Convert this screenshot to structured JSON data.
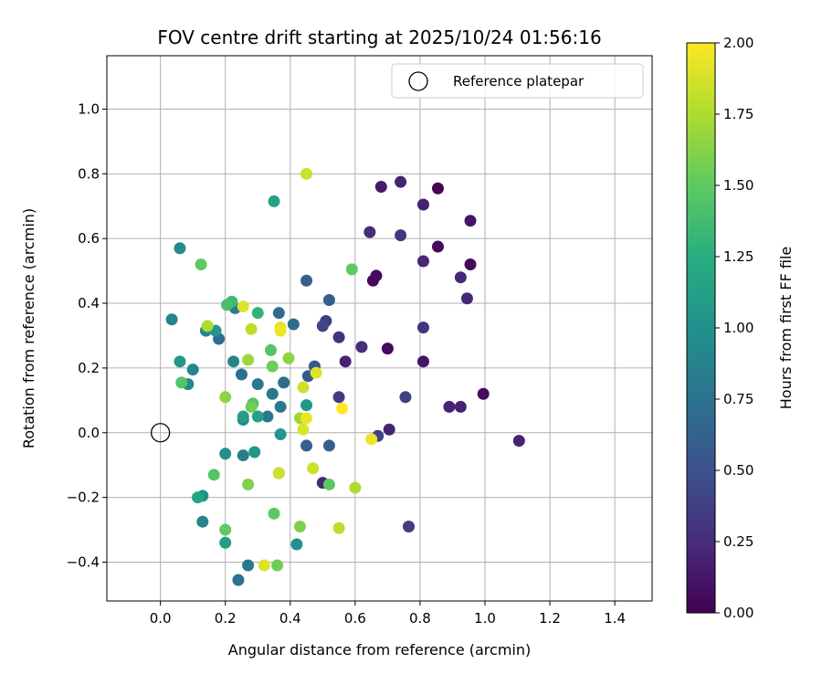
{
  "chart_data": {
    "type": "scatter",
    "title": "FOV centre drift starting at 2025/10/24 01:56:16",
    "xlabel": "Angular distance from reference (arcmin)",
    "ylabel": "Rotation from reference (arcmin)",
    "xlim": [
      -0.165,
      1.515
    ],
    "ylim": [
      -0.52,
      1.165
    ],
    "xticks": [
      0.0,
      0.2,
      0.4,
      0.6,
      0.8,
      1.0,
      1.2,
      1.4
    ],
    "xtick_labels": [
      "0.0",
      "0.2",
      "0.4",
      "0.6",
      "0.8",
      "1.0",
      "1.2",
      "1.4"
    ],
    "yticks": [
      -0.4,
      -0.2,
      0.0,
      0.2,
      0.4,
      0.6,
      0.8,
      1.0
    ],
    "ytick_labels": [
      "−0.4",
      "−0.2",
      "0.0",
      "0.2",
      "0.4",
      "0.6",
      "0.8",
      "1.0"
    ],
    "grid": true,
    "legend": {
      "location": "top-right",
      "entries": [
        "Reference platepar"
      ]
    },
    "reference_point": {
      "x": 0.0,
      "y": 0.0,
      "label": "Reference platepar"
    },
    "colorbar": {
      "label": "Hours from first FF file",
      "colormap": "viridis",
      "range": [
        0.0,
        2.0
      ],
      "ticks": [
        0.0,
        0.25,
        0.5,
        0.75,
        1.0,
        1.25,
        1.5,
        1.75,
        2.0
      ],
      "tick_labels": [
        "0.00",
        "0.25",
        "0.50",
        "0.75",
        "1.00",
        "1.25",
        "1.50",
        "1.75",
        "2.00"
      ]
    },
    "points": [
      {
        "x": 0.855,
        "y": 0.755,
        "c": 0.02
      },
      {
        "x": 0.68,
        "y": 0.76,
        "c": 0.15
      },
      {
        "x": 0.74,
        "y": 0.775,
        "c": 0.2
      },
      {
        "x": 0.81,
        "y": 0.705,
        "c": 0.18
      },
      {
        "x": 0.955,
        "y": 0.655,
        "c": 0.12
      },
      {
        "x": 0.645,
        "y": 0.62,
        "c": 0.25
      },
      {
        "x": 0.74,
        "y": 0.61,
        "c": 0.3
      },
      {
        "x": 0.855,
        "y": 0.575,
        "c": 0.05
      },
      {
        "x": 0.955,
        "y": 0.52,
        "c": 0.05
      },
      {
        "x": 0.81,
        "y": 0.53,
        "c": 0.22
      },
      {
        "x": 0.925,
        "y": 0.48,
        "c": 0.22
      },
      {
        "x": 0.945,
        "y": 0.415,
        "c": 0.22
      },
      {
        "x": 0.665,
        "y": 0.485,
        "c": 0.05
      },
      {
        "x": 0.655,
        "y": 0.47,
        "c": 0.05
      },
      {
        "x": 0.81,
        "y": 0.325,
        "c": 0.3
      },
      {
        "x": 0.81,
        "y": 0.22,
        "c": 0.12
      },
      {
        "x": 0.7,
        "y": 0.26,
        "c": 0.05
      },
      {
        "x": 0.62,
        "y": 0.265,
        "c": 0.25
      },
      {
        "x": 0.57,
        "y": 0.22,
        "c": 0.2
      },
      {
        "x": 0.55,
        "y": 0.295,
        "c": 0.28
      },
      {
        "x": 0.51,
        "y": 0.345,
        "c": 0.35
      },
      {
        "x": 0.5,
        "y": 0.33,
        "c": 0.42
      },
      {
        "x": 0.52,
        "y": 0.41,
        "c": 0.6
      },
      {
        "x": 0.45,
        "y": 0.47,
        "c": 0.62
      },
      {
        "x": 0.55,
        "y": 0.11,
        "c": 0.35
      },
      {
        "x": 0.755,
        "y": 0.11,
        "c": 0.38
      },
      {
        "x": 0.89,
        "y": 0.08,
        "c": 0.2
      },
      {
        "x": 0.925,
        "y": 0.08,
        "c": 0.2
      },
      {
        "x": 0.995,
        "y": 0.12,
        "c": 0.05
      },
      {
        "x": 1.105,
        "y": -0.025,
        "c": 0.2
      },
      {
        "x": 0.705,
        "y": 0.01,
        "c": 0.2
      },
      {
        "x": 0.67,
        "y": -0.01,
        "c": 0.4
      },
      {
        "x": 0.765,
        "y": -0.29,
        "c": 0.35
      },
      {
        "x": 0.5,
        "y": -0.155,
        "c": 0.22
      },
      {
        "x": 0.52,
        "y": -0.04,
        "c": 0.6
      },
      {
        "x": 0.45,
        "y": -0.04,
        "c": 0.6
      },
      {
        "x": 0.365,
        "y": -0.125,
        "c": 0.62
      },
      {
        "x": 0.455,
        "y": 0.175,
        "c": 0.55
      },
      {
        "x": 0.475,
        "y": 0.205,
        "c": 0.55
      },
      {
        "x": 0.365,
        "y": 0.37,
        "c": 0.7
      },
      {
        "x": 0.41,
        "y": 0.335,
        "c": 0.7
      },
      {
        "x": 0.38,
        "y": 0.155,
        "c": 0.7
      },
      {
        "x": 0.37,
        "y": 0.08,
        "c": 0.8
      },
      {
        "x": 0.345,
        "y": 0.12,
        "c": 0.78
      },
      {
        "x": 0.3,
        "y": 0.15,
        "c": 0.8
      },
      {
        "x": 0.25,
        "y": 0.18,
        "c": 0.75
      },
      {
        "x": 0.225,
        "y": 0.22,
        "c": 0.9
      },
      {
        "x": 0.23,
        "y": 0.385,
        "c": 0.8
      },
      {
        "x": 0.18,
        "y": 0.29,
        "c": 0.7
      },
      {
        "x": 0.14,
        "y": 0.315,
        "c": 0.9
      },
      {
        "x": 0.035,
        "y": 0.35,
        "c": 0.9
      },
      {
        "x": 0.06,
        "y": 0.57,
        "c": 0.95
      },
      {
        "x": 0.1,
        "y": 0.195,
        "c": 0.9
      },
      {
        "x": 0.085,
        "y": 0.15,
        "c": 0.95
      },
      {
        "x": 0.06,
        "y": 0.22,
        "c": 1.05
      },
      {
        "x": 0.17,
        "y": 0.315,
        "c": 1.05
      },
      {
        "x": 0.33,
        "y": 0.05,
        "c": 0.8
      },
      {
        "x": 0.255,
        "y": 0.04,
        "c": 0.95
      },
      {
        "x": 0.255,
        "y": 0.05,
        "c": 1.1
      },
      {
        "x": 0.3,
        "y": 0.05,
        "c": 1.15
      },
      {
        "x": 0.37,
        "y": -0.005,
        "c": 1.05
      },
      {
        "x": 0.45,
        "y": 0.085,
        "c": 1.05
      },
      {
        "x": 0.255,
        "y": -0.07,
        "c": 0.85
      },
      {
        "x": 0.29,
        "y": -0.06,
        "c": 1.05
      },
      {
        "x": 0.2,
        "y": -0.065,
        "c": 1.0
      },
      {
        "x": 0.13,
        "y": -0.275,
        "c": 0.9
      },
      {
        "x": 0.13,
        "y": -0.195,
        "c": 1.0
      },
      {
        "x": 0.115,
        "y": -0.2,
        "c": 1.15
      },
      {
        "x": 0.2,
        "y": -0.34,
        "c": 1.1
      },
      {
        "x": 0.27,
        "y": -0.41,
        "c": 0.8
      },
      {
        "x": 0.24,
        "y": -0.455,
        "c": 0.75
      },
      {
        "x": 0.42,
        "y": -0.345,
        "c": 1.0
      },
      {
        "x": 0.35,
        "y": 0.715,
        "c": 1.15
      },
      {
        "x": 0.3,
        "y": 0.37,
        "c": 1.3
      },
      {
        "x": 0.22,
        "y": 0.405,
        "c": 1.35
      },
      {
        "x": 0.205,
        "y": 0.395,
        "c": 1.4
      },
      {
        "x": 0.125,
        "y": 0.52,
        "c": 1.5
      },
      {
        "x": 0.065,
        "y": 0.155,
        "c": 1.45
      },
      {
        "x": 0.34,
        "y": 0.255,
        "c": 1.45
      },
      {
        "x": 0.345,
        "y": 0.205,
        "c": 1.55
      },
      {
        "x": 0.395,
        "y": 0.23,
        "c": 1.65
      },
      {
        "x": 0.59,
        "y": 0.505,
        "c": 1.5
      },
      {
        "x": 0.285,
        "y": 0.09,
        "c": 1.45
      },
      {
        "x": 0.28,
        "y": 0.08,
        "c": 1.55
      },
      {
        "x": 0.2,
        "y": 0.11,
        "c": 1.65
      },
      {
        "x": 0.165,
        "y": -0.13,
        "c": 1.45
      },
      {
        "x": 0.27,
        "y": -0.16,
        "c": 1.6
      },
      {
        "x": 0.2,
        "y": -0.3,
        "c": 1.5
      },
      {
        "x": 0.35,
        "y": -0.25,
        "c": 1.5
      },
      {
        "x": 0.36,
        "y": -0.41,
        "c": 1.55
      },
      {
        "x": 0.43,
        "y": -0.29,
        "c": 1.6
      },
      {
        "x": 0.52,
        "y": -0.16,
        "c": 1.5
      },
      {
        "x": 0.6,
        "y": -0.17,
        "c": 1.75
      },
      {
        "x": 0.55,
        "y": -0.295,
        "c": 1.8
      },
      {
        "x": 0.47,
        "y": -0.11,
        "c": 1.85
      },
      {
        "x": 0.365,
        "y": -0.125,
        "c": 1.85
      },
      {
        "x": 0.43,
        "y": 0.045,
        "c": 1.7
      },
      {
        "x": 0.27,
        "y": 0.225,
        "c": 1.7
      },
      {
        "x": 0.28,
        "y": 0.32,
        "c": 1.8
      },
      {
        "x": 0.145,
        "y": 0.33,
        "c": 1.75
      },
      {
        "x": 0.255,
        "y": 0.39,
        "c": 1.9
      },
      {
        "x": 0.37,
        "y": 0.325,
        "c": 1.9
      },
      {
        "x": 0.37,
        "y": 0.315,
        "c": 1.95
      },
      {
        "x": 0.44,
        "y": 0.14,
        "c": 1.85
      },
      {
        "x": 0.48,
        "y": 0.185,
        "c": 1.9
      },
      {
        "x": 0.45,
        "y": 0.8,
        "c": 1.85
      },
      {
        "x": 0.44,
        "y": 0.01,
        "c": 1.9
      },
      {
        "x": 0.45,
        "y": 0.045,
        "c": 1.95
      },
      {
        "x": 0.56,
        "y": 0.075,
        "c": 2.0
      },
      {
        "x": 0.65,
        "y": -0.02,
        "c": 1.95
      },
      {
        "x": 0.32,
        "y": -0.41,
        "c": 1.9
      }
    ]
  }
}
